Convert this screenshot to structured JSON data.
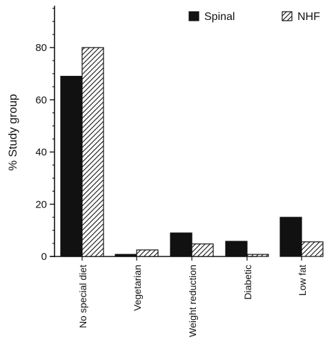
{
  "chart_data": {
    "type": "bar",
    "categories": [
      "No special diet",
      "Vegetarian",
      "Weight reduction",
      "Diabetic",
      "Low fat"
    ],
    "series": [
      {
        "name": "Spinal",
        "values": [
          69,
          0.8,
          9,
          5.8,
          15
        ],
        "color": "#111111",
        "pattern": "solid"
      },
      {
        "name": "NHF",
        "values": [
          80,
          2.5,
          4.8,
          0.8,
          5.6
        ],
        "color": "#111111",
        "pattern": "hatched"
      }
    ],
    "ylabel": "% Study group",
    "yticks": [
      0,
      20,
      40,
      60,
      80
    ],
    "ylim": [
      0,
      96
    ],
    "legend_position": "top-right",
    "grid": false
  }
}
